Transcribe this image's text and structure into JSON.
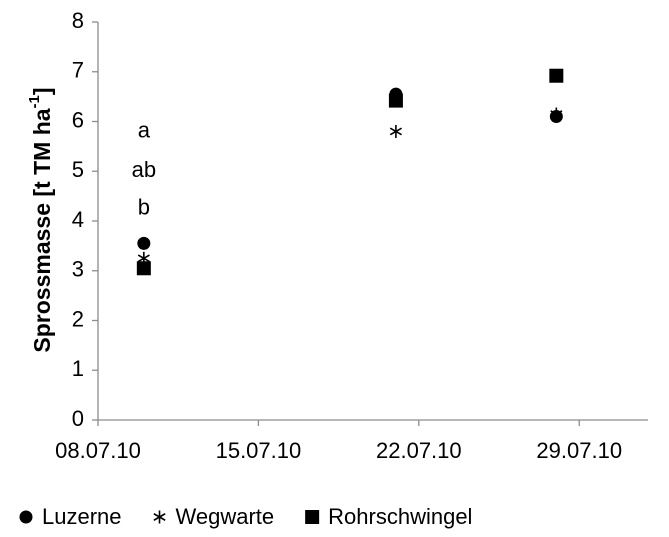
{
  "chart_data": {
    "type": "scatter",
    "title": "",
    "xlabel": "",
    "ylabel": "Sprossmasse [t TM ha",
    "ylabel_superscript": "-1",
    "ylabel_suffix": "]",
    "ylim": [
      0,
      8
    ],
    "yticks": [
      "0",
      "1",
      "2",
      "3",
      "4",
      "5",
      "6",
      "7",
      "8"
    ],
    "xlim": [
      "08.07.10",
      "01.08.10"
    ],
    "xticks": [
      "08.07.10",
      "15.07.10",
      "22.07.10",
      "29.07.10"
    ],
    "grid": false,
    "legend_position": "bottom",
    "series": [
      {
        "name": "Luzerne",
        "marker": "circle",
        "color": "#000000",
        "x": [
          "10.07.10",
          "21.07.10",
          "28.07.10"
        ],
        "y": [
          3.55,
          6.55,
          6.1
        ]
      },
      {
        "name": "Wegwarte",
        "marker": "asterisk",
        "color": "#000000",
        "x": [
          "10.07.10",
          "21.07.10",
          "28.07.10"
        ],
        "y": [
          3.25,
          5.8,
          6.15
        ]
      },
      {
        "name": "Rohrschwingel",
        "marker": "square",
        "color": "#000000",
        "x": [
          "10.07.10",
          "21.07.10",
          "28.07.10"
        ],
        "y": [
          3.05,
          6.42,
          6.92
        ]
      }
    ],
    "annotations": [
      {
        "text": "a",
        "x": "10.07.10",
        "y": 5.8
      },
      {
        "text": "ab",
        "x": "10.07.10",
        "y": 5.0
      },
      {
        "text": "b",
        "x": "10.07.10",
        "y": 4.25
      }
    ]
  }
}
